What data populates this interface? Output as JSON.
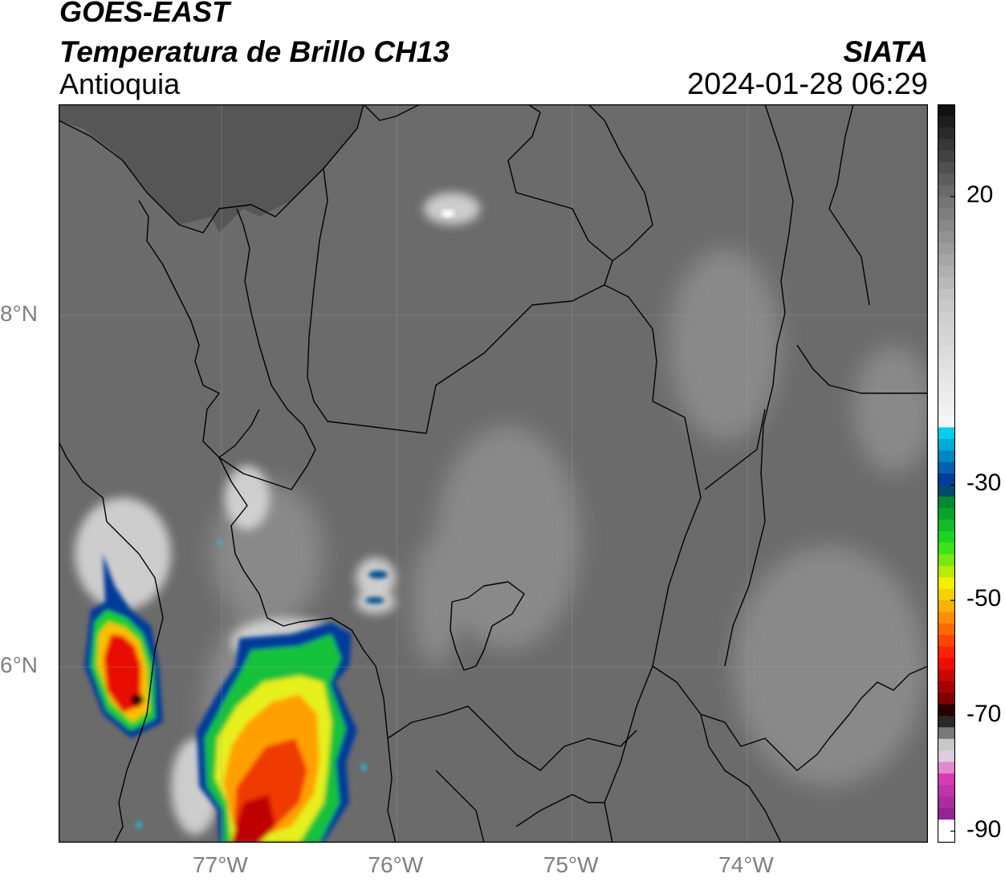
{
  "header": {
    "title_line1": "GOES-EAST",
    "title_line2": "Temperatura de Brillo CH13",
    "region": "Antioquia",
    "organization": "SIATA",
    "timestamp": "2024-01-28 06:29"
  },
  "map": {
    "lat_labels": [
      {
        "value": 8,
        "text": "8°N"
      },
      {
        "value": 6,
        "text": "6°N"
      }
    ],
    "lon_labels": [
      {
        "value": -77,
        "text": "77°W"
      },
      {
        "value": -76,
        "text": "76°W"
      },
      {
        "value": -75,
        "text": "75°W"
      },
      {
        "value": -74,
        "text": "74°W"
      }
    ],
    "extent": {
      "lon": [
        -77.93,
        -72.97
      ],
      "lat": [
        5.0,
        9.2
      ]
    },
    "gridlines": true,
    "base_color": "#6b6b6b"
  },
  "colorbar": {
    "range": [
      -92,
      36
    ],
    "ticks": [
      {
        "value": 20,
        "text": "20"
      },
      {
        "value": -30,
        "text": "-30"
      },
      {
        "value": -50,
        "text": "-50"
      },
      {
        "value": -70,
        "text": "-70"
      },
      {
        "value": -90,
        "text": "-90"
      }
    ],
    "stops": [
      {
        "value": 36,
        "color": "#0a0a0a"
      },
      {
        "value": 20,
        "color": "#707070"
      },
      {
        "value": 2,
        "color": "#c8c8c8"
      },
      {
        "value": -20,
        "color": "#f8f8f8"
      },
      {
        "value": -20.5,
        "color": "#00d8f0"
      },
      {
        "value": -30,
        "color": "#002a90"
      },
      {
        "value": -33,
        "color": "#008a30"
      },
      {
        "value": -40,
        "color": "#20e020"
      },
      {
        "value": -47,
        "color": "#f0f000"
      },
      {
        "value": -52,
        "color": "#ffa000"
      },
      {
        "value": -60,
        "color": "#ff1000"
      },
      {
        "value": -67,
        "color": "#800000"
      },
      {
        "value": -70,
        "color": "#000000"
      },
      {
        "value": -75,
        "color": "#c8c8c8"
      },
      {
        "value": -78,
        "color": "#e8d0e8"
      },
      {
        "value": -80,
        "color": "#e040b8"
      },
      {
        "value": -88,
        "color": "#8a2090"
      },
      {
        "value": -88.5,
        "color": "#ffffff"
      },
      {
        "value": -92,
        "color": "#ffffff"
      }
    ]
  }
}
